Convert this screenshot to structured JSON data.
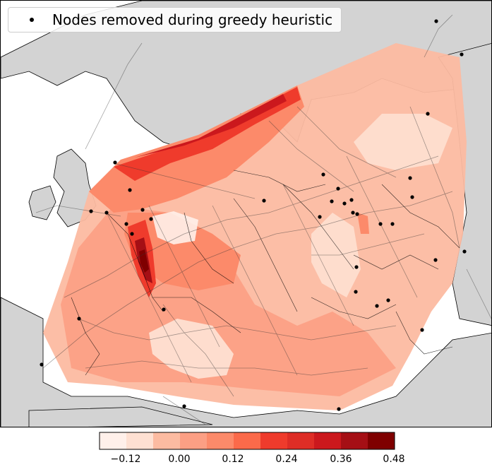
{
  "legend": {
    "label": "Nodes removed during greedy heuristic",
    "marker_icon": "black-dot-icon"
  },
  "colorbar": {
    "colormap": "Reds",
    "levels": [
      -0.18,
      -0.15,
      -0.12,
      -0.09,
      -0.06,
      -0.03,
      0.0,
      0.03,
      0.06,
      0.09,
      0.12,
      0.15,
      0.18,
      0.21,
      0.24,
      0.27,
      0.3,
      0.33,
      0.36,
      0.39,
      0.42,
      0.45,
      0.48
    ],
    "band_colors": [
      "#fff0ea",
      "#fee0d2",
      "#fcbba1",
      "#fc9f84",
      "#fc8a6a",
      "#fb6a4a",
      "#ef3b2c",
      "#de2d26",
      "#cb181d",
      "#a50f15",
      "#7f0000"
    ],
    "tick_labels": [
      "−0.12",
      "0.00",
      "0.12",
      "0.24",
      "0.36",
      "0.48"
    ]
  },
  "colors": {
    "land": "#d3d3d3",
    "sea": "#ffffff",
    "coastline": "#000000",
    "grid_lines": "#555555",
    "removed_nodes": "#000000"
  }
}
